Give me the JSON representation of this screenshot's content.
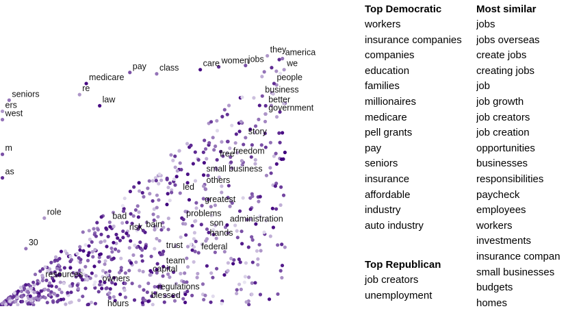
{
  "chart_data": {
    "type": "scatter",
    "title": "",
    "xlabel": "",
    "ylabel": "",
    "xlim": [
      0,
      1
    ],
    "ylim": [
      0,
      1
    ],
    "grid": false,
    "color_scale": [
      "#e9e6f2",
      "#3f007d"
    ],
    "labeled_points": [
      {
        "label": "they",
        "x": 0.785,
        "y": 0.91
      },
      {
        "label": "america",
        "x": 0.83,
        "y": 0.9
      },
      {
        "label": "jobs",
        "x": 0.72,
        "y": 0.875
      },
      {
        "label": "women",
        "x": 0.64,
        "y": 0.87
      },
      {
        "label": "care",
        "x": 0.585,
        "y": 0.86
      },
      {
        "label": "we",
        "x": 0.835,
        "y": 0.86
      },
      {
        "label": "class",
        "x": 0.455,
        "y": 0.845
      },
      {
        "label": "pay",
        "x": 0.375,
        "y": 0.85
      },
      {
        "label": "people",
        "x": 0.805,
        "y": 0.81
      },
      {
        "label": "medicare",
        "x": 0.245,
        "y": 0.81
      },
      {
        "label": "re",
        "x": 0.225,
        "y": 0.77
      },
      {
        "label": "seniors",
        "x": 0.015,
        "y": 0.75
      },
      {
        "label": "business",
        "x": 0.77,
        "y": 0.765
      },
      {
        "label": "better",
        "x": 0.78,
        "y": 0.73
      },
      {
        "label": "law",
        "x": 0.285,
        "y": 0.73
      },
      {
        "label": "government",
        "x": 0.78,
        "y": 0.7
      },
      {
        "label": "story",
        "x": 0.72,
        "y": 0.615
      },
      {
        "label": "freedom",
        "x": 0.675,
        "y": 0.545
      },
      {
        "label": "free",
        "x": 0.635,
        "y": 0.535
      },
      {
        "label": "small business",
        "x": 0.595,
        "y": 0.48
      },
      {
        "label": "others",
        "x": 0.595,
        "y": 0.44
      },
      {
        "label": "led",
        "x": 0.525,
        "y": 0.415
      },
      {
        "label": "greatest",
        "x": 0.59,
        "y": 0.37
      },
      {
        "label": "problems",
        "x": 0.535,
        "y": 0.32
      },
      {
        "label": "administration",
        "x": 0.665,
        "y": 0.3
      },
      {
        "label": "role",
        "x": 0.12,
        "y": 0.325
      },
      {
        "label": "bad",
        "x": 0.315,
        "y": 0.31
      },
      {
        "label": "son",
        "x": 0.605,
        "y": 0.285
      },
      {
        "label": "bain",
        "x": 0.415,
        "y": 0.28
      },
      {
        "label": "risk",
        "x": 0.365,
        "y": 0.27
      },
      {
        "label": "hands",
        "x": 0.605,
        "y": 0.25
      },
      {
        "label": "30",
        "x": 0.065,
        "y": 0.215
      },
      {
        "label": "federal",
        "x": 0.58,
        "y": 0.2
      },
      {
        "label": "trust",
        "x": 0.475,
        "y": 0.205
      },
      {
        "label": "team",
        "x": 0.475,
        "y": 0.15
      },
      {
        "label": "capital",
        "x": 0.435,
        "y": 0.12
      },
      {
        "label": "resources",
        "x": 0.115,
        "y": 0.1
      },
      {
        "label": "owners",
        "x": 0.285,
        "y": 0.085
      },
      {
        "label": "regulations",
        "x": 0.45,
        "y": 0.055
      },
      {
        "label": "blessed",
        "x": 0.43,
        "y": 0.025
      },
      {
        "label": "hours",
        "x": 0.3,
        "y": -0.005
      }
    ],
    "edge_fragments": [
      {
        "label": "ers",
        "x": -0.005,
        "y": 0.71
      },
      {
        "label": "west",
        "x": -0.005,
        "y": 0.68
      },
      {
        "label": "m",
        "x": -0.005,
        "y": 0.555
      },
      {
        "label": "as",
        "x": -0.005,
        "y": 0.47
      }
    ]
  },
  "columns": {
    "democratic": {
      "heading": "Top Democratic",
      "items": [
        "workers",
        "insurance companies",
        "companies",
        "education",
        "families",
        "millionaires",
        "medicare",
        "pell grants",
        "pay",
        "seniors",
        "insurance",
        "affordable",
        "industry",
        "auto industry"
      ]
    },
    "similar": {
      "heading": "Most similar",
      "items": [
        "jobs",
        "jobs overseas",
        "create jobs",
        "creating jobs",
        "job",
        "job growth",
        "job creators",
        "job creation",
        "opportunities",
        "businesses",
        "responsibilities",
        "paycheck",
        "employees",
        "workers",
        "investments",
        "insurance compan",
        "small businesses",
        "budgets",
        "homes"
      ]
    },
    "republican": {
      "heading": "Top Republican",
      "items": [
        "job creators",
        "unemployment"
      ]
    }
  }
}
